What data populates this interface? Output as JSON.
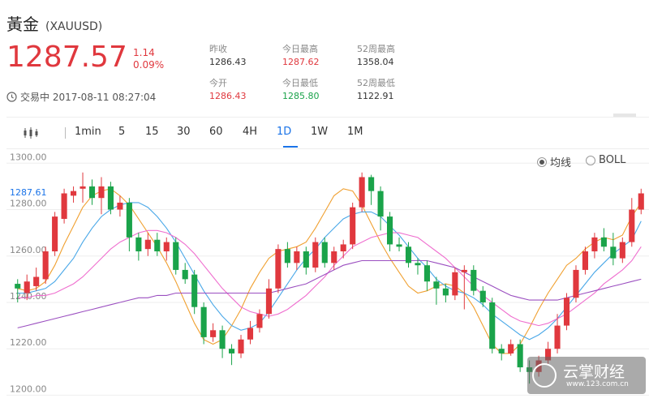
{
  "header": {
    "name": "黃金",
    "symbol": "(XAUUSD)",
    "price": "1287.57",
    "change": "1.14",
    "change_pct": "0.09%",
    "status": "交易中 2017-08-11 08:27:04"
  },
  "stats": {
    "prev_close_label": "昨收",
    "prev_close": "1286.43",
    "high_label": "今日最高",
    "high": "1287.62",
    "high52_label": "52周最高",
    "high52": "1358.04",
    "open_label": "今开",
    "open": "1286.43",
    "low_label": "今日最低",
    "low": "1285.80",
    "low52_label": "52周最低",
    "low52": "1122.91"
  },
  "tabs": [
    "1min",
    "5",
    "15",
    "30",
    "60",
    "4H",
    "1D",
    "1W",
    "1M"
  ],
  "active_tab": "1D",
  "legend": {
    "ma": "均线",
    "boll": "BOLL"
  },
  "watermark": {
    "name": "云掌财经",
    "url": "www.123.com.cn"
  },
  "colors": {
    "up": "#e0383e",
    "down": "#1aa34a",
    "ma5": "#f0a030",
    "ma10": "#4aa8e8",
    "ma20": "#ef6fcf",
    "ma60": "#9b4fc0",
    "accent": "#1a73e8"
  },
  "chart_data": {
    "type": "candlestick",
    "y_ticks": [
      "1300.00",
      "1280.00",
      "1260.00",
      "1240.00",
      "1220.00",
      "1200.00"
    ],
    "y_range": [
      1197,
      1305
    ],
    "current_label": "1287.61",
    "series": [
      {
        "name": "MA5",
        "values": [
          1246,
          1245,
          1246,
          1249,
          1256,
          1265,
          1273,
          1281,
          1286,
          1288,
          1289,
          1286,
          1282,
          1276,
          1270,
          1264,
          1257,
          1249,
          1240,
          1231,
          1224,
          1222,
          1224,
          1230,
          1237,
          1246,
          1253,
          1259,
          1262,
          1263,
          1264,
          1266,
          1272,
          1279,
          1286,
          1289,
          1288,
          1282,
          1274,
          1266,
          1259,
          1253,
          1247,
          1244,
          1245,
          1247,
          1248,
          1247,
          1244,
          1238,
          1230,
          1222,
          1218,
          1218,
          1222,
          1229,
          1237,
          1244,
          1250,
          1256,
          1259,
          1263,
          1266,
          1268,
          1267,
          1269,
          1277,
          1283
        ]
      },
      {
        "name": "MA10",
        "values": [
          1244,
          1244,
          1245,
          1246,
          1249,
          1254,
          1259,
          1266,
          1272,
          1277,
          1280,
          1282,
          1283,
          1283,
          1281,
          1277,
          1272,
          1266,
          1259,
          1252,
          1245,
          1239,
          1234,
          1230,
          1228,
          1229,
          1231,
          1236,
          1242,
          1248,
          1254,
          1259,
          1263,
          1268,
          1272,
          1276,
          1278,
          1279,
          1279,
          1277,
          1273,
          1269,
          1264,
          1259,
          1255,
          1250,
          1247,
          1245,
          1244,
          1242,
          1239,
          1235,
          1232,
          1229,
          1226,
          1224,
          1226,
          1229,
          1233,
          1238,
          1243,
          1248,
          1253,
          1257,
          1261,
          1264,
          1267,
          1275
        ]
      },
      {
        "name": "MA20",
        "values": [
          1242,
          1242,
          1243,
          1243,
          1244,
          1246,
          1248,
          1251,
          1255,
          1259,
          1263,
          1266,
          1268,
          1270,
          1271,
          1271,
          1270,
          1268,
          1265,
          1261,
          1256,
          1251,
          1246,
          1242,
          1238,
          1236,
          1235,
          1234,
          1235,
          1237,
          1240,
          1243,
          1247,
          1251,
          1256,
          1260,
          1264,
          1266,
          1268,
          1269,
          1270,
          1270,
          1269,
          1268,
          1265,
          1262,
          1259,
          1255,
          1251,
          1247,
          1243,
          1240,
          1237,
          1234,
          1232,
          1231,
          1230,
          1231,
          1233,
          1235,
          1238,
          1241,
          1244,
          1248,
          1251,
          1254,
          1258,
          1264
        ]
      },
      {
        "name": "MA60",
        "values": [
          1229,
          1230,
          1231,
          1232,
          1233,
          1234,
          1235,
          1236,
          1237,
          1238,
          1239,
          1240,
          1241,
          1242,
          1242,
          1243,
          1243,
          1244,
          1244,
          1244,
          1244,
          1244,
          1244,
          1244,
          1244,
          1244,
          1244,
          1244,
          1245,
          1246,
          1247,
          1248,
          1250,
          1252,
          1254,
          1256,
          1257,
          1258,
          1258,
          1258,
          1258,
          1258,
          1258,
          1258,
          1258,
          1257,
          1256,
          1255,
          1253,
          1251,
          1249,
          1247,
          1245,
          1243,
          1242,
          1241,
          1241,
          1241,
          1241,
          1242,
          1243,
          1244,
          1245,
          1246,
          1247,
          1248,
          1249,
          1250
        ]
      }
    ],
    "candles": [
      [
        1248,
        1246,
        1250,
        1240
      ],
      [
        1244,
        1249,
        1252,
        1241
      ],
      [
        1247,
        1251,
        1255,
        1245
      ],
      [
        1250,
        1262,
        1264,
        1248
      ],
      [
        1262,
        1277,
        1279,
        1260
      ],
      [
        1276,
        1287,
        1289,
        1274
      ],
      [
        1286,
        1288,
        1290,
        1283
      ],
      [
        1289,
        1290,
        1296,
        1283
      ],
      [
        1290,
        1285,
        1293,
        1282
      ],
      [
        1285,
        1290,
        1294,
        1278
      ],
      [
        1290,
        1280,
        1292,
        1278
      ],
      [
        1280,
        1283,
        1286,
        1277
      ],
      [
        1283,
        1268,
        1285,
        1262
      ],
      [
        1268,
        1262,
        1270,
        1258
      ],
      [
        1263,
        1267,
        1270,
        1260
      ],
      [
        1267,
        1262,
        1270,
        1260
      ],
      [
        1262,
        1266,
        1268,
        1258
      ],
      [
        1266,
        1254,
        1268,
        1252
      ],
      [
        1254,
        1250,
        1257,
        1248
      ],
      [
        1252,
        1238,
        1254,
        1235
      ],
      [
        1238,
        1225,
        1240,
        1222
      ],
      [
        1225,
        1228,
        1231,
        1223
      ],
      [
        1228,
        1220,
        1230,
        1216
      ],
      [
        1220,
        1218,
        1222,
        1213
      ],
      [
        1218,
        1224,
        1226,
        1216
      ],
      [
        1224,
        1229,
        1232,
        1222
      ],
      [
        1229,
        1235,
        1237,
        1227
      ],
      [
        1235,
        1246,
        1250,
        1233
      ],
      [
        1246,
        1263,
        1265,
        1244
      ],
      [
        1263,
        1257,
        1266,
        1255
      ],
      [
        1257,
        1262,
        1264,
        1254
      ],
      [
        1262,
        1255,
        1264,
        1252
      ],
      [
        1255,
        1266,
        1268,
        1253
      ],
      [
        1266,
        1257,
        1268,
        1255
      ],
      [
        1257,
        1262,
        1264,
        1254
      ],
      [
        1262,
        1265,
        1267,
        1259
      ],
      [
        1265,
        1281,
        1283,
        1263
      ],
      [
        1281,
        1294,
        1296,
        1279
      ],
      [
        1294,
        1288,
        1295,
        1282
      ],
      [
        1288,
        1277,
        1290,
        1271
      ],
      [
        1277,
        1265,
        1279,
        1262
      ],
      [
        1265,
        1264,
        1268,
        1262
      ],
      [
        1264,
        1257,
        1266,
        1255
      ],
      [
        1257,
        1256,
        1259,
        1252
      ],
      [
        1256,
        1249,
        1258,
        1245
      ],
      [
        1249,
        1246,
        1251,
        1239
      ],
      [
        1246,
        1243,
        1248,
        1240
      ],
      [
        1243,
        1253,
        1255,
        1241
      ],
      [
        1253,
        1254,
        1256,
        1237
      ],
      [
        1254,
        1245,
        1256,
        1243
      ],
      [
        1245,
        1240,
        1247,
        1238
      ],
      [
        1240,
        1220,
        1242,
        1218
      ],
      [
        1220,
        1218,
        1222,
        1215
      ],
      [
        1218,
        1222,
        1224,
        1217
      ],
      [
        1222,
        1212,
        1224,
        1210
      ],
      [
        1212,
        1210,
        1215,
        1205
      ],
      [
        1210,
        1215,
        1217,
        1208
      ],
      [
        1215,
        1220,
        1223,
        1213
      ],
      [
        1220,
        1230,
        1235,
        1218
      ],
      [
        1230,
        1242,
        1244,
        1228
      ],
      [
        1242,
        1254,
        1256,
        1240
      ],
      [
        1254,
        1262,
        1264,
        1252
      ],
      [
        1262,
        1268,
        1270,
        1259
      ],
      [
        1268,
        1264,
        1272,
        1262
      ],
      [
        1264,
        1259,
        1270,
        1256
      ],
      [
        1259,
        1266,
        1268,
        1257
      ],
      [
        1266,
        1280,
        1285,
        1264
      ],
      [
        1280,
        1287,
        1289,
        1278
      ]
    ]
  }
}
